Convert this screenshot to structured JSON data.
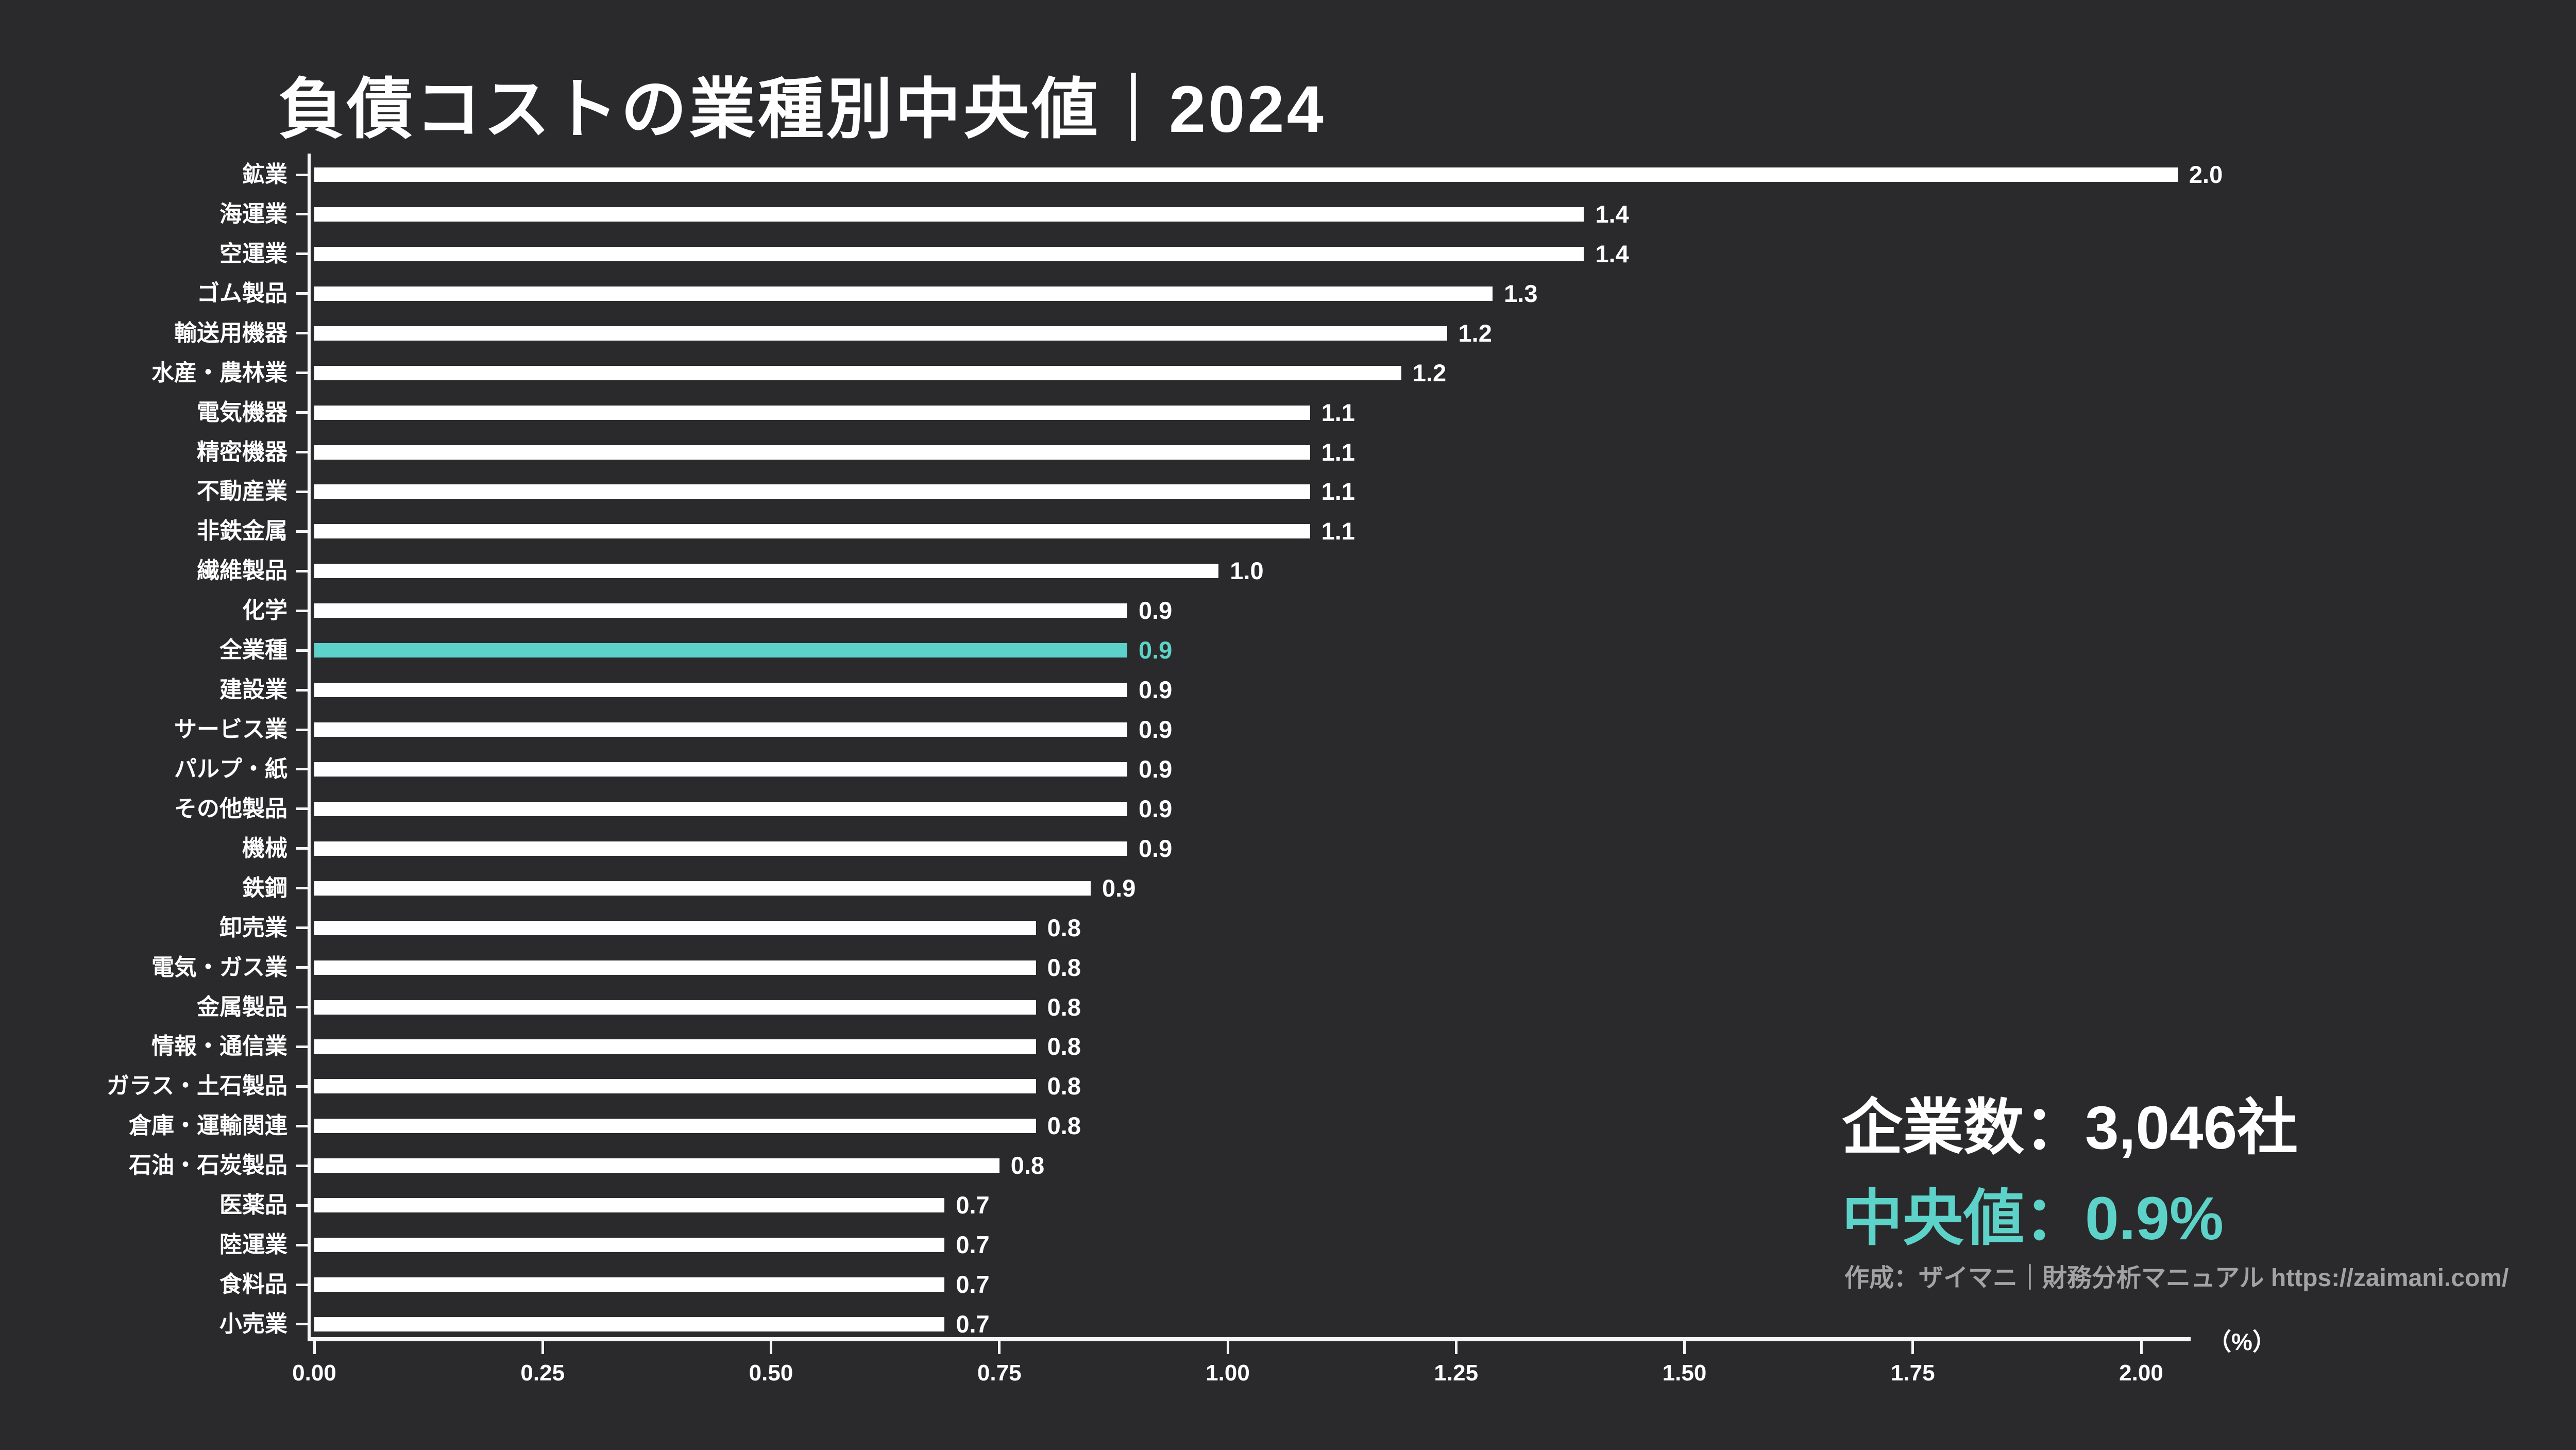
{
  "title": "負債コストの業種別中央値｜2024",
  "colors": {
    "background": "#2a2a2c",
    "bar": "#ffffff",
    "highlight": "#5dd2c8",
    "text": "#ffffff",
    "muted": "#a3a3a3"
  },
  "chart_data": {
    "type": "bar",
    "orientation": "horizontal",
    "title": "負債コストの業種別中央値｜2024",
    "xlabel": "（%）",
    "unit": "%",
    "xlim": [
      0,
      2.0
    ],
    "grid": false,
    "legend": "none",
    "x_ticks": [
      "0.00",
      "0.25",
      "0.50",
      "0.75",
      "1.00",
      "1.25",
      "1.50",
      "1.75",
      "2.00"
    ],
    "x_tick_values": [
      0,
      0.25,
      0.5,
      0.75,
      1.0,
      1.25,
      1.5,
      1.75,
      2.0
    ],
    "categories": [
      "鉱業",
      "海運業",
      "空運業",
      "ゴム製品",
      "輸送用機器",
      "水産・農林業",
      "電気機器",
      "精密機器",
      "不動産業",
      "非鉄金属",
      "繊維製品",
      "化学",
      "全業種",
      "建設業",
      "サービス業",
      "パルプ・紙",
      "その他製品",
      "機械",
      "鉄鋼",
      "卸売業",
      "電気・ガス業",
      "金属製品",
      "情報・通信業",
      "ガラス・土石製品",
      "倉庫・運輸関連",
      "石油・石炭製品",
      "医薬品",
      "陸運業",
      "食料品",
      "小売業"
    ],
    "values": [
      2.0,
      1.4,
      1.4,
      1.3,
      1.2,
      1.2,
      1.1,
      1.1,
      1.1,
      1.1,
      1.0,
      0.9,
      0.9,
      0.9,
      0.9,
      0.9,
      0.9,
      0.9,
      0.9,
      0.8,
      0.8,
      0.8,
      0.8,
      0.8,
      0.8,
      0.8,
      0.7,
      0.7,
      0.7,
      0.7
    ],
    "value_labels": [
      "2.0",
      "1.4",
      "1.4",
      "1.3",
      "1.2",
      "1.2",
      "1.1",
      "1.1",
      "1.1",
      "1.1",
      "1.0",
      "0.9",
      "0.9",
      "0.9",
      "0.9",
      "0.9",
      "0.9",
      "0.9",
      "0.9",
      "0.8",
      "0.8",
      "0.8",
      "0.8",
      "0.8",
      "0.8",
      "0.8",
      "0.7",
      "0.7",
      "0.7",
      "0.7"
    ],
    "precise_values": [
      2.04,
      1.39,
      1.39,
      1.29,
      1.24,
      1.19,
      1.09,
      1.09,
      1.09,
      1.09,
      0.99,
      0.89,
      0.89,
      0.89,
      0.89,
      0.89,
      0.89,
      0.89,
      0.85,
      0.79,
      0.79,
      0.79,
      0.79,
      0.79,
      0.79,
      0.75,
      0.69,
      0.69,
      0.69,
      0.69
    ],
    "highlight_index": 12,
    "highlight_category": "全業種"
  },
  "stats": {
    "companies_line": "企業数：3,046社",
    "median_line": "中央値：0.9%"
  },
  "source": "作成：ザイマニ｜財務分析マニュアル https://zaimani.com/",
  "axis_unit_label": "（%）"
}
